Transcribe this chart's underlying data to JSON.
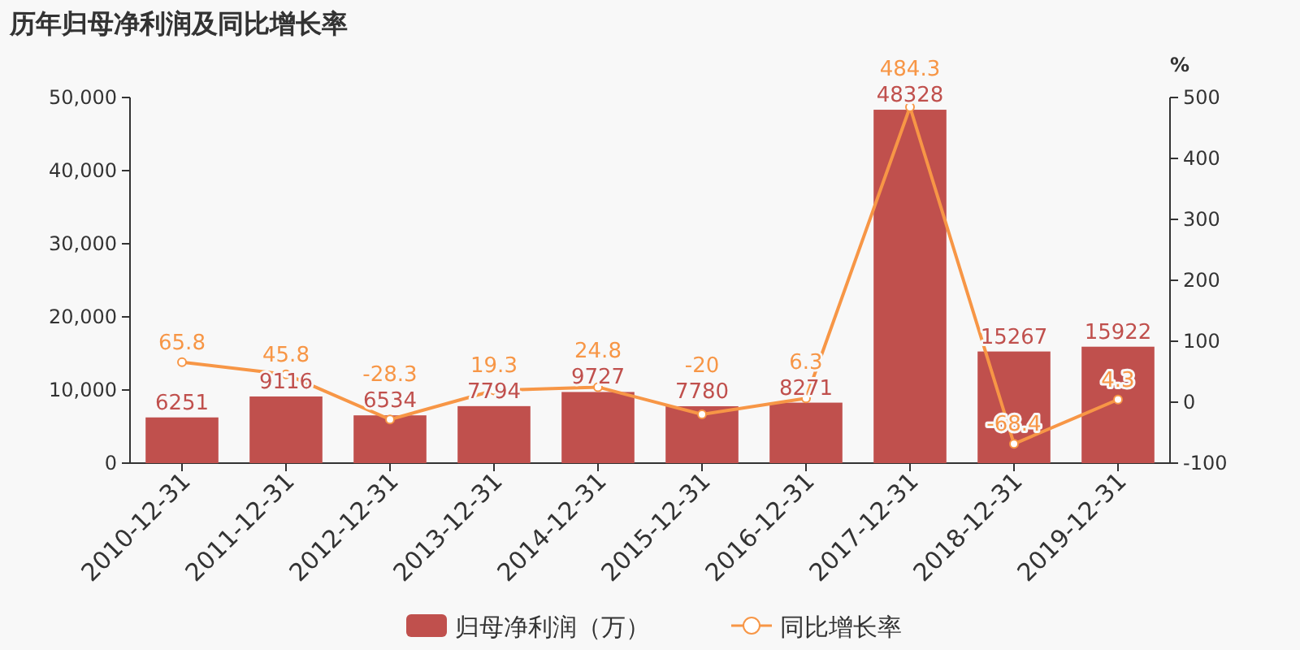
{
  "chart_data": {
    "type": "bar",
    "title": "历年归母净利润及同比增长率",
    "y2label": "%",
    "categories": [
      "2010-12-31",
      "2011-12-31",
      "2012-12-31",
      "2013-12-31",
      "2014-12-31",
      "2015-12-31",
      "2016-12-31",
      "2017-12-31",
      "2018-12-31",
      "2019-12-31"
    ],
    "series": [
      {
        "name": "归母净利润（万）",
        "color": "#c0504d",
        "values": [
          6251,
          9116,
          6534,
          7794,
          9727,
          7780,
          8271,
          48328,
          15267,
          15922
        ]
      },
      {
        "name": "同比增长率",
        "type": "line",
        "axis": "y2",
        "color": "#f79646",
        "marker": "circle",
        "values": [
          65.8,
          45.8,
          -28.3,
          19.3,
          24.8,
          -20,
          6.3,
          484.3,
          -68.4,
          4.3
        ]
      }
    ],
    "ylim": [
      0,
      50000
    ],
    "yticks": [
      {
        "value": 0,
        "label": "0"
      },
      {
        "value": 10000,
        "label": "10,000"
      },
      {
        "value": 20000,
        "label": "20,000"
      },
      {
        "value": 30000,
        "label": "30,000"
      },
      {
        "value": 40000,
        "label": "40,000"
      },
      {
        "value": 50000,
        "label": "50,000"
      }
    ],
    "y2lim": [
      -100,
      500
    ],
    "y2ticks": [
      -100,
      0,
      100,
      200,
      300,
      400,
      500
    ],
    "data_labels": true,
    "legend": "bottom",
    "grid": false
  }
}
